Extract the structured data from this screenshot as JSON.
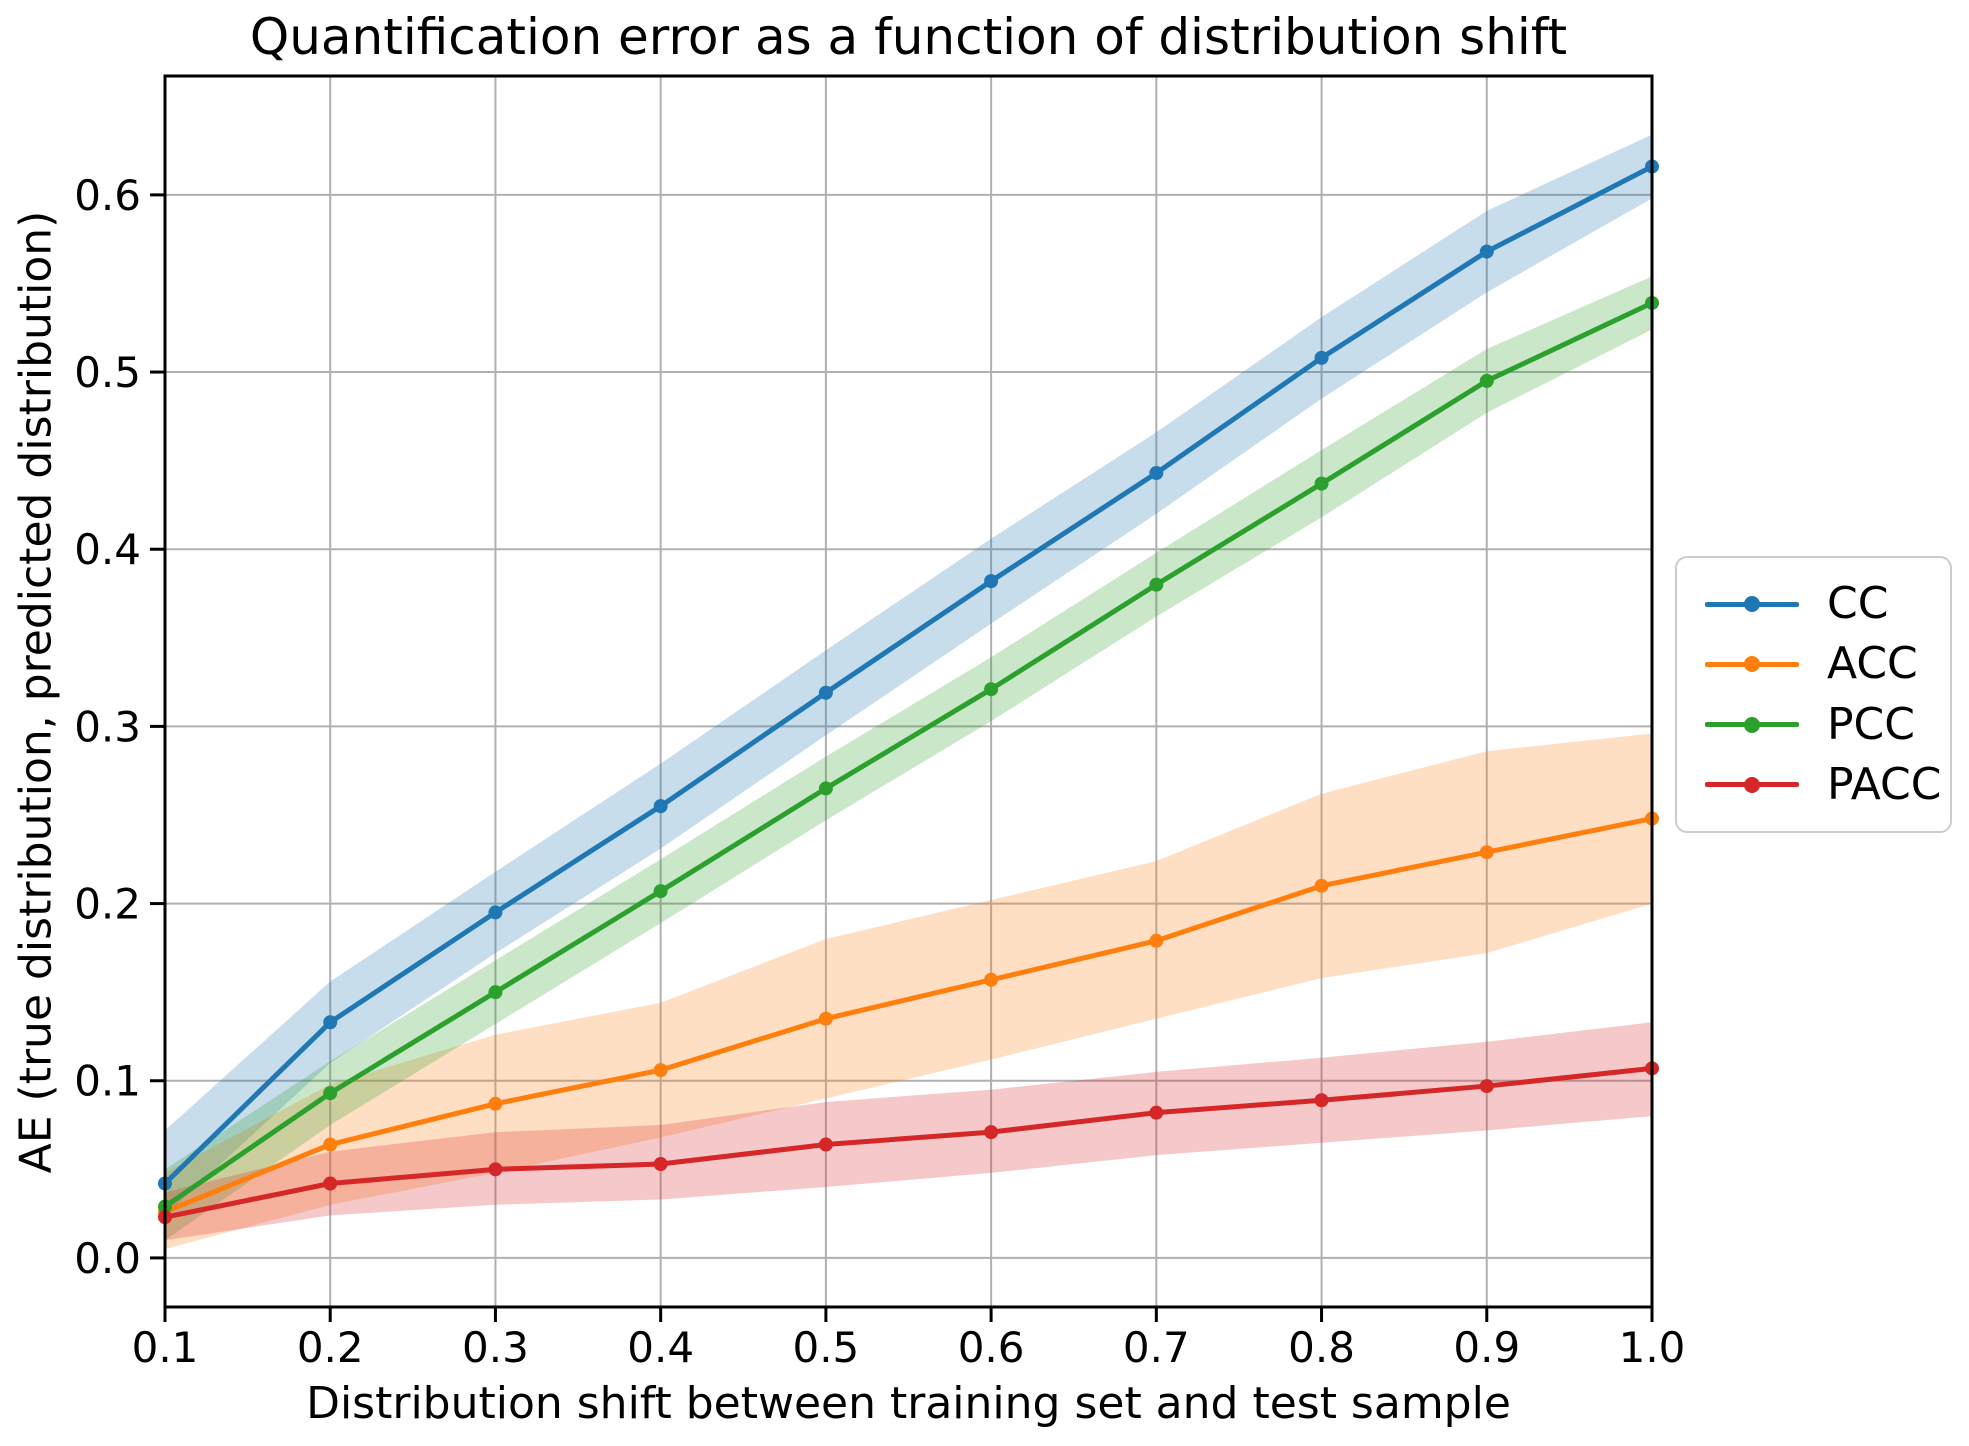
{
  "chart_data": {
    "type": "line",
    "title": "Quantification error as a function of distribution shift",
    "xlabel": "Distribution shift between training set and test sample",
    "ylabel": "AE (true distribution, predicted distribution)",
    "grid": true,
    "legend_position": "right-outside",
    "xlim": [
      0.1,
      1.0
    ],
    "ylim": [
      -0.0277,
      0.6671
    ],
    "x": [
      0.1,
      0.2,
      0.3,
      0.4,
      0.5,
      0.6,
      0.7,
      0.8,
      0.9,
      1.0
    ],
    "x_tick_labels": [
      "0.1",
      "0.2",
      "0.3",
      "0.4",
      "0.5",
      "0.6",
      "0.7",
      "0.8",
      "0.9",
      "1.0"
    ],
    "y_tick_values": [
      0.0,
      0.1,
      0.2,
      0.3,
      0.4,
      0.5,
      0.6
    ],
    "y_tick_labels": [
      "0.0",
      "0.1",
      "0.2",
      "0.3",
      "0.4",
      "0.5",
      "0.6"
    ],
    "band_alpha": 0.25,
    "grid_color": "#b0b0b0",
    "spine_color": "#000000",
    "series": [
      {
        "name": "CC",
        "color": "#1f77b4",
        "values": [
          0.042,
          0.133,
          0.195,
          0.255,
          0.319,
          0.382,
          0.443,
          0.508,
          0.568,
          0.616
        ],
        "band_lower": [
          0.024,
          0.11,
          0.172,
          0.231,
          0.295,
          0.358,
          0.42,
          0.485,
          0.545,
          0.598
        ],
        "band_upper": [
          0.072,
          0.156,
          0.218,
          0.279,
          0.343,
          0.406,
          0.466,
          0.531,
          0.591,
          0.634
        ]
      },
      {
        "name": "ACC",
        "color": "#ff7f0e",
        "values": [
          0.026,
          0.064,
          0.087,
          0.106,
          0.135,
          0.157,
          0.179,
          0.21,
          0.229,
          0.248
        ],
        "band_lower": [
          0.005,
          0.03,
          0.048,
          0.068,
          0.09,
          0.112,
          0.135,
          0.158,
          0.172,
          0.2
        ],
        "band_upper": [
          0.048,
          0.098,
          0.126,
          0.144,
          0.18,
          0.202,
          0.224,
          0.262,
          0.286,
          0.296
        ]
      },
      {
        "name": "PCC",
        "color": "#2ca02c",
        "values": [
          0.029,
          0.093,
          0.15,
          0.207,
          0.265,
          0.321,
          0.38,
          0.437,
          0.495,
          0.539
        ],
        "band_lower": [
          0.01,
          0.075,
          0.132,
          0.189,
          0.247,
          0.303,
          0.362,
          0.418,
          0.477,
          0.524
        ],
        "band_upper": [
          0.05,
          0.111,
          0.168,
          0.225,
          0.283,
          0.339,
          0.398,
          0.456,
          0.513,
          0.554
        ]
      },
      {
        "name": "PACC",
        "color": "#d62728",
        "values": [
          0.023,
          0.042,
          0.05,
          0.053,
          0.064,
          0.071,
          0.082,
          0.089,
          0.097,
          0.107
        ],
        "band_lower": [
          0.01,
          0.024,
          0.03,
          0.033,
          0.04,
          0.048,
          0.058,
          0.065,
          0.072,
          0.08
        ],
        "band_upper": [
          0.037,
          0.06,
          0.071,
          0.075,
          0.088,
          0.095,
          0.105,
          0.113,
          0.122,
          0.133
        ]
      }
    ]
  }
}
